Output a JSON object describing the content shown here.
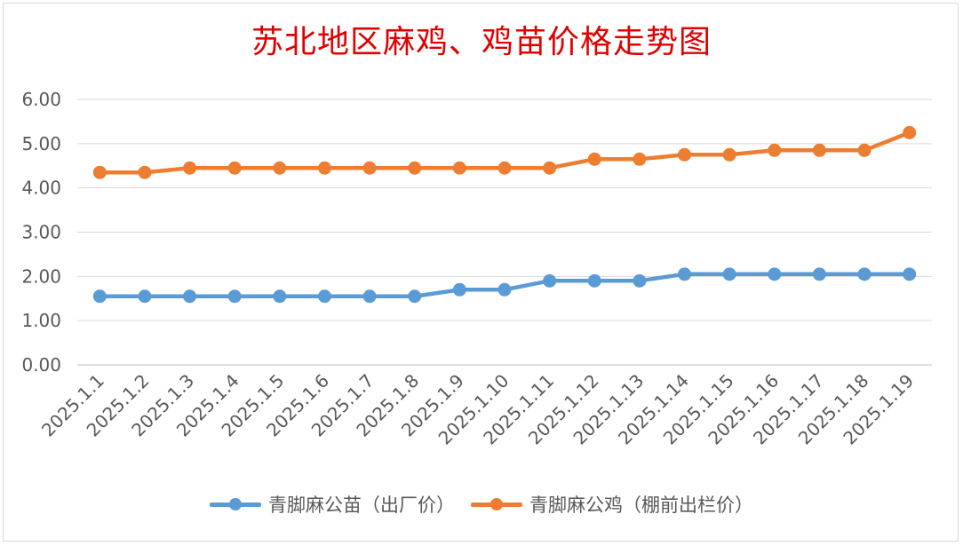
{
  "chart_data": {
    "type": "line",
    "title": "苏北地区麻鸡、鸡苗价格走势图",
    "categories": [
      "2025.1.1",
      "2025.1.2",
      "2025.1.3",
      "2025.1.4",
      "2025.1.5",
      "2025.1.6",
      "2025.1.7",
      "2025.1.8",
      "2025.1.9",
      "2025.1.10",
      "2025.1.11",
      "2025.1.12",
      "2025.1.13",
      "2025.1.14",
      "2025.1.15",
      "2025.1.16",
      "2025.1.17",
      "2025.1.18",
      "2025.1.19"
    ],
    "ylim": [
      0,
      6
    ],
    "yticks": [
      "0.00",
      "1.00",
      "2.00",
      "3.00",
      "4.00",
      "5.00",
      "6.00"
    ],
    "grid": true,
    "legend_position": "bottom",
    "series": [
      {
        "name": "青脚麻公苗（出厂价）",
        "color": "#5b9bd5",
        "values": [
          1.55,
          1.55,
          1.55,
          1.55,
          1.55,
          1.55,
          1.55,
          1.55,
          1.7,
          1.7,
          1.9,
          1.9,
          1.9,
          2.05,
          2.05,
          2.05,
          2.05,
          2.05,
          2.05
        ]
      },
      {
        "name": "青脚麻公鸡（棚前出栏价）",
        "color": "#ed7d31",
        "values": [
          4.35,
          4.35,
          4.45,
          4.45,
          4.45,
          4.45,
          4.45,
          4.45,
          4.45,
          4.45,
          4.45,
          4.65,
          4.65,
          4.75,
          4.75,
          4.85,
          4.85,
          4.85,
          5.25
        ]
      }
    ]
  }
}
